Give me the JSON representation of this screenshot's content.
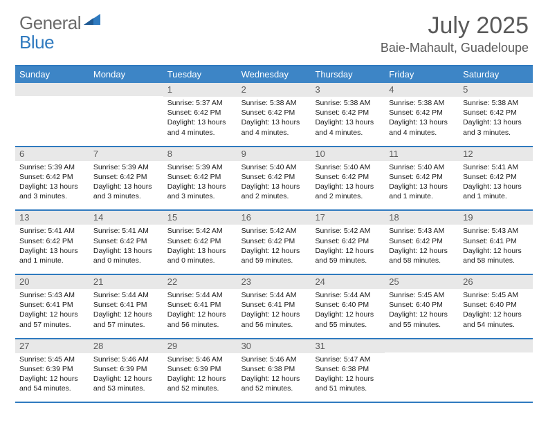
{
  "brand": {
    "general": "General",
    "blue": "Blue"
  },
  "title": "July 2025",
  "location": "Baie-Mahault, Guadeloupe",
  "colors": {
    "header_bg": "#3d85c6",
    "border": "#2f7abf",
    "daynum_bg": "#e8e8e8",
    "text_dark": "#1a1a1a",
    "text_gray": "#595959"
  },
  "dayHeaders": [
    "Sunday",
    "Monday",
    "Tuesday",
    "Wednesday",
    "Thursday",
    "Friday",
    "Saturday"
  ],
  "weeks": [
    [
      {
        "day": "",
        "sunrise": "",
        "sunset": "",
        "daylight": ""
      },
      {
        "day": "",
        "sunrise": "",
        "sunset": "",
        "daylight": ""
      },
      {
        "day": "1",
        "sunrise": "Sunrise: 5:37 AM",
        "sunset": "Sunset: 6:42 PM",
        "daylight": "Daylight: 13 hours and 4 minutes."
      },
      {
        "day": "2",
        "sunrise": "Sunrise: 5:38 AM",
        "sunset": "Sunset: 6:42 PM",
        "daylight": "Daylight: 13 hours and 4 minutes."
      },
      {
        "day": "3",
        "sunrise": "Sunrise: 5:38 AM",
        "sunset": "Sunset: 6:42 PM",
        "daylight": "Daylight: 13 hours and 4 minutes."
      },
      {
        "day": "4",
        "sunrise": "Sunrise: 5:38 AM",
        "sunset": "Sunset: 6:42 PM",
        "daylight": "Daylight: 13 hours and 4 minutes."
      },
      {
        "day": "5",
        "sunrise": "Sunrise: 5:38 AM",
        "sunset": "Sunset: 6:42 PM",
        "daylight": "Daylight: 13 hours and 3 minutes."
      }
    ],
    [
      {
        "day": "6",
        "sunrise": "Sunrise: 5:39 AM",
        "sunset": "Sunset: 6:42 PM",
        "daylight": "Daylight: 13 hours and 3 minutes."
      },
      {
        "day": "7",
        "sunrise": "Sunrise: 5:39 AM",
        "sunset": "Sunset: 6:42 PM",
        "daylight": "Daylight: 13 hours and 3 minutes."
      },
      {
        "day": "8",
        "sunrise": "Sunrise: 5:39 AM",
        "sunset": "Sunset: 6:42 PM",
        "daylight": "Daylight: 13 hours and 3 minutes."
      },
      {
        "day": "9",
        "sunrise": "Sunrise: 5:40 AM",
        "sunset": "Sunset: 6:42 PM",
        "daylight": "Daylight: 13 hours and 2 minutes."
      },
      {
        "day": "10",
        "sunrise": "Sunrise: 5:40 AM",
        "sunset": "Sunset: 6:42 PM",
        "daylight": "Daylight: 13 hours and 2 minutes."
      },
      {
        "day": "11",
        "sunrise": "Sunrise: 5:40 AM",
        "sunset": "Sunset: 6:42 PM",
        "daylight": "Daylight: 13 hours and 1 minute."
      },
      {
        "day": "12",
        "sunrise": "Sunrise: 5:41 AM",
        "sunset": "Sunset: 6:42 PM",
        "daylight": "Daylight: 13 hours and 1 minute."
      }
    ],
    [
      {
        "day": "13",
        "sunrise": "Sunrise: 5:41 AM",
        "sunset": "Sunset: 6:42 PM",
        "daylight": "Daylight: 13 hours and 1 minute."
      },
      {
        "day": "14",
        "sunrise": "Sunrise: 5:41 AM",
        "sunset": "Sunset: 6:42 PM",
        "daylight": "Daylight: 13 hours and 0 minutes."
      },
      {
        "day": "15",
        "sunrise": "Sunrise: 5:42 AM",
        "sunset": "Sunset: 6:42 PM",
        "daylight": "Daylight: 13 hours and 0 minutes."
      },
      {
        "day": "16",
        "sunrise": "Sunrise: 5:42 AM",
        "sunset": "Sunset: 6:42 PM",
        "daylight": "Daylight: 12 hours and 59 minutes."
      },
      {
        "day": "17",
        "sunrise": "Sunrise: 5:42 AM",
        "sunset": "Sunset: 6:42 PM",
        "daylight": "Daylight: 12 hours and 59 minutes."
      },
      {
        "day": "18",
        "sunrise": "Sunrise: 5:43 AM",
        "sunset": "Sunset: 6:42 PM",
        "daylight": "Daylight: 12 hours and 58 minutes."
      },
      {
        "day": "19",
        "sunrise": "Sunrise: 5:43 AM",
        "sunset": "Sunset: 6:41 PM",
        "daylight": "Daylight: 12 hours and 58 minutes."
      }
    ],
    [
      {
        "day": "20",
        "sunrise": "Sunrise: 5:43 AM",
        "sunset": "Sunset: 6:41 PM",
        "daylight": "Daylight: 12 hours and 57 minutes."
      },
      {
        "day": "21",
        "sunrise": "Sunrise: 5:44 AM",
        "sunset": "Sunset: 6:41 PM",
        "daylight": "Daylight: 12 hours and 57 minutes."
      },
      {
        "day": "22",
        "sunrise": "Sunrise: 5:44 AM",
        "sunset": "Sunset: 6:41 PM",
        "daylight": "Daylight: 12 hours and 56 minutes."
      },
      {
        "day": "23",
        "sunrise": "Sunrise: 5:44 AM",
        "sunset": "Sunset: 6:41 PM",
        "daylight": "Daylight: 12 hours and 56 minutes."
      },
      {
        "day": "24",
        "sunrise": "Sunrise: 5:44 AM",
        "sunset": "Sunset: 6:40 PM",
        "daylight": "Daylight: 12 hours and 55 minutes."
      },
      {
        "day": "25",
        "sunrise": "Sunrise: 5:45 AM",
        "sunset": "Sunset: 6:40 PM",
        "daylight": "Daylight: 12 hours and 55 minutes."
      },
      {
        "day": "26",
        "sunrise": "Sunrise: 5:45 AM",
        "sunset": "Sunset: 6:40 PM",
        "daylight": "Daylight: 12 hours and 54 minutes."
      }
    ],
    [
      {
        "day": "27",
        "sunrise": "Sunrise: 5:45 AM",
        "sunset": "Sunset: 6:39 PM",
        "daylight": "Daylight: 12 hours and 54 minutes."
      },
      {
        "day": "28",
        "sunrise": "Sunrise: 5:46 AM",
        "sunset": "Sunset: 6:39 PM",
        "daylight": "Daylight: 12 hours and 53 minutes."
      },
      {
        "day": "29",
        "sunrise": "Sunrise: 5:46 AM",
        "sunset": "Sunset: 6:39 PM",
        "daylight": "Daylight: 12 hours and 52 minutes."
      },
      {
        "day": "30",
        "sunrise": "Sunrise: 5:46 AM",
        "sunset": "Sunset: 6:38 PM",
        "daylight": "Daylight: 12 hours and 52 minutes."
      },
      {
        "day": "31",
        "sunrise": "Sunrise: 5:47 AM",
        "sunset": "Sunset: 6:38 PM",
        "daylight": "Daylight: 12 hours and 51 minutes."
      },
      {
        "day": "",
        "sunrise": "",
        "sunset": "",
        "daylight": ""
      },
      {
        "day": "",
        "sunrise": "",
        "sunset": "",
        "daylight": ""
      }
    ]
  ]
}
